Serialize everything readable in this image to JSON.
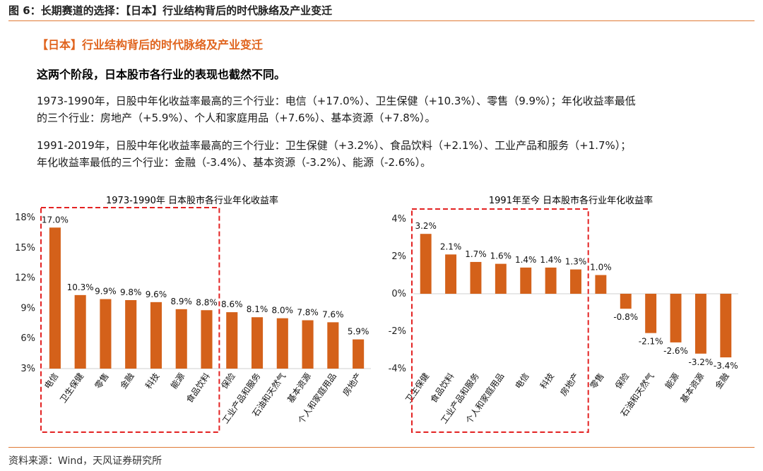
{
  "header": {
    "figure_title": "图 6：长期赛道的选择：【日本】行业结构背后的时代脉络及产业变迁"
  },
  "content": {
    "subtitle": "【日本】行业结构背后的时代脉络及产业变迁",
    "lead": "这两个阶段，日本股市各行业的表现也截然不同。",
    "para1_line1": "1973-1990年，日股中年化收益率最高的三个行业：电信（+17.0%）、卫生保健（+10.3%）、零售（9.9%）；年化收益率最低",
    "para1_line2": "的三个行业：房地产（+5.9%）、个人和家庭用品（+7.6%）、基本资源（+7.8%）。",
    "para2_line1": "1991-2019年，日股中年化收益率最高的三个行业：卫生保健（+3.2%）、食品饮料（+2.1%）、工业产品和服务（+1.7%）；",
    "para2_line2": "年化收益率最低的三个行业：金融（-3.4%）、基本资源（-3.2%）、能源（-2.6%）。"
  },
  "colors": {
    "bar": "#d4611a",
    "highlight_box": "#e32222",
    "accent_rule": "#e07a35"
  },
  "chart_data": [
    {
      "type": "bar",
      "title": "1973-1990年 日本股市各行业年化收益率",
      "categories": [
        "电信",
        "卫生保健",
        "零售",
        "金融",
        "科技",
        "能源",
        "食品饮料",
        "保险",
        "工业产品和服务",
        "石油和天然气",
        "基本资源",
        "个人和家庭用品",
        "房地产"
      ],
      "values": [
        17.0,
        10.3,
        9.9,
        9.8,
        9.6,
        8.9,
        8.8,
        8.6,
        8.1,
        8.0,
        7.8,
        7.6,
        5.9
      ],
      "data_labels": [
        "17.0%",
        "10.3%",
        "9.9%",
        "9.8%",
        "9.6%",
        "8.9%",
        "8.8%",
        "8.6%",
        "8.1%",
        "8.0%",
        "7.8%",
        "7.6%",
        "5.9%"
      ],
      "ylim": [
        3,
        18
      ],
      "yticks": [
        3,
        6,
        9,
        12,
        15,
        18
      ],
      "ytick_labels": [
        "3%",
        "6%",
        "9%",
        "12%",
        "15%",
        "18%"
      ],
      "highlight_count": 7,
      "xlabel": "",
      "ylabel": ""
    },
    {
      "type": "bar",
      "title": "1991年至今 日本股市各行业年化收益率",
      "categories": [
        "卫生保健",
        "食品饮料",
        "工业产品和服务",
        "个人和家庭用品",
        "电信",
        "科技",
        "房地产",
        "零售",
        "保险",
        "石油和天然气",
        "能源",
        "基本资源",
        "金融"
      ],
      "values": [
        3.2,
        2.1,
        1.7,
        1.6,
        1.4,
        1.4,
        1.3,
        1.0,
        -0.8,
        -2.1,
        -2.6,
        -3.2,
        -3.4
      ],
      "data_labels": [
        "3.2%",
        "2.1%",
        "1.7%",
        "1.6%",
        "1.4%",
        "1.4%",
        "1.3%",
        "1.0%",
        "-0.8%",
        "-2.1%",
        "-2.6%",
        "-3.2%",
        "-3.4%"
      ],
      "ylim": [
        -4,
        4
      ],
      "yticks": [
        -4,
        -2,
        0,
        2,
        4
      ],
      "ytick_labels": [
        "-4%",
        "-2%",
        "0%",
        "2%",
        "4%"
      ],
      "highlight_count": 7,
      "xlabel": "",
      "ylabel": ""
    }
  ],
  "footer": {
    "source": "资料来源：Wind，天风证券研究所"
  }
}
